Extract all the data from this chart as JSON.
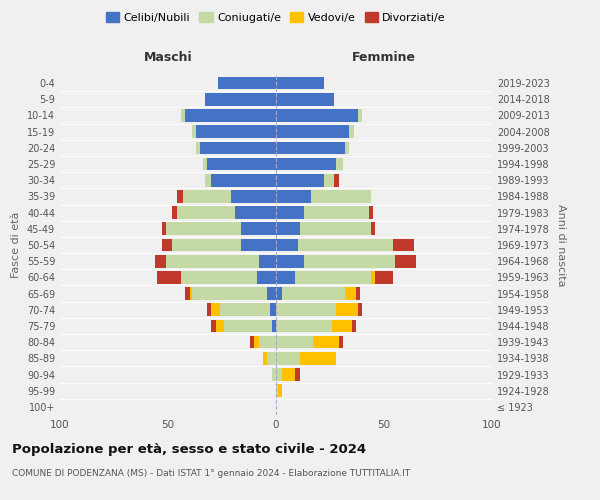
{
  "age_groups": [
    "100+",
    "95-99",
    "90-94",
    "85-89",
    "80-84",
    "75-79",
    "70-74",
    "65-69",
    "60-64",
    "55-59",
    "50-54",
    "45-49",
    "40-44",
    "35-39",
    "30-34",
    "25-29",
    "20-24",
    "15-19",
    "10-14",
    "5-9",
    "0-4"
  ],
  "birth_years": [
    "≤ 1923",
    "1924-1928",
    "1929-1933",
    "1934-1938",
    "1939-1943",
    "1944-1948",
    "1949-1953",
    "1954-1958",
    "1959-1963",
    "1964-1968",
    "1969-1973",
    "1974-1978",
    "1979-1983",
    "1984-1988",
    "1989-1993",
    "1994-1998",
    "1999-2003",
    "2004-2008",
    "2009-2013",
    "2014-2018",
    "2019-2023"
  ],
  "maschi_celibi": [
    0,
    0,
    0,
    0,
    0,
    2,
    3,
    4,
    9,
    8,
    16,
    16,
    19,
    21,
    30,
    32,
    35,
    37,
    42,
    33,
    27
  ],
  "maschi_coniugati": [
    0,
    0,
    2,
    4,
    8,
    22,
    23,
    35,
    35,
    43,
    32,
    35,
    27,
    22,
    3,
    2,
    2,
    2,
    2,
    0,
    0
  ],
  "maschi_vedovi": [
    0,
    0,
    0,
    2,
    2,
    4,
    4,
    1,
    0,
    0,
    0,
    0,
    0,
    0,
    0,
    0,
    0,
    0,
    0,
    0,
    0
  ],
  "maschi_divorziati": [
    0,
    0,
    0,
    0,
    2,
    2,
    2,
    2,
    11,
    5,
    5,
    2,
    2,
    3,
    0,
    0,
    0,
    0,
    0,
    0,
    0
  ],
  "femmine_celibi": [
    0,
    0,
    0,
    0,
    0,
    0,
    0,
    3,
    9,
    13,
    10,
    11,
    13,
    16,
    22,
    28,
    32,
    34,
    38,
    27,
    22
  ],
  "femmine_coniugati": [
    0,
    1,
    3,
    11,
    17,
    26,
    28,
    29,
    35,
    42,
    44,
    33,
    30,
    28,
    5,
    3,
    2,
    2,
    2,
    0,
    0
  ],
  "femmine_vedovi": [
    0,
    2,
    6,
    17,
    12,
    9,
    10,
    5,
    2,
    0,
    0,
    0,
    0,
    0,
    0,
    0,
    0,
    0,
    0,
    0,
    0
  ],
  "femmine_divorziati": [
    0,
    0,
    2,
    0,
    2,
    2,
    2,
    2,
    8,
    10,
    10,
    2,
    2,
    0,
    2,
    0,
    0,
    0,
    0,
    0,
    0
  ],
  "color_celibi": "#4472c4",
  "color_coniugati": "#c5d9a4",
  "color_vedovi": "#ffc000",
  "color_divorziati": "#c0392b",
  "title": "Popolazione per età, sesso e stato civile - 2024",
  "subtitle": "COMUNE DI PODENZANA (MS) - Dati ISTAT 1° gennaio 2024 - Elaborazione TUTTITALIA.IT",
  "ylabel_left": "Fasce di età",
  "ylabel_right": "Anni di nascita",
  "xlabel_left": "Maschi",
  "xlabel_right": "Femmine",
  "xlim": 100,
  "legend_labels": [
    "Celibi/Nubili",
    "Coniugati/e",
    "Vedovi/e",
    "Divorziati/e"
  ],
  "bg_color": "#f0f0f0"
}
